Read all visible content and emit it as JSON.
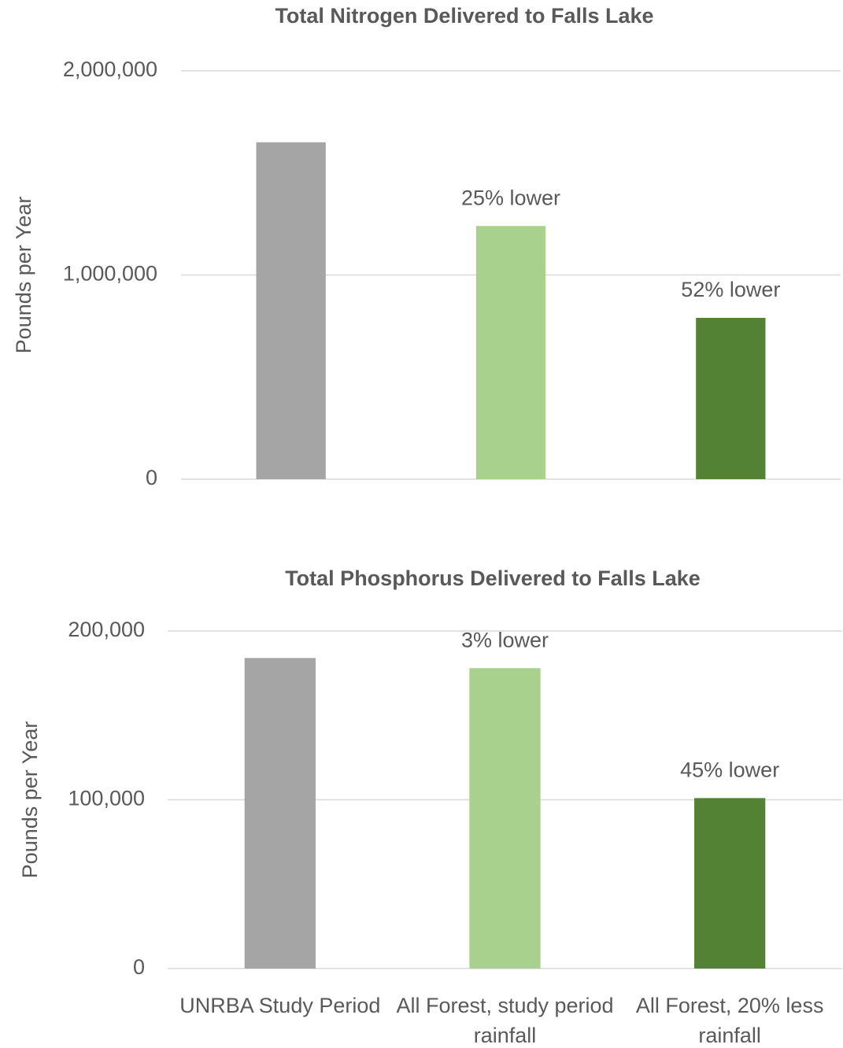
{
  "chart_data": [
    {
      "type": "bar",
      "title": "Total Nitrogen Delivered to Falls Lake",
      "y_label": "Pounds per Year",
      "categories": [
        null,
        null,
        null
      ],
      "values": [
        1650000,
        1240000,
        790000
      ],
      "colors": [
        "#a5a5a5",
        "#a9d18e",
        "#548235"
      ],
      "annotations": [
        null,
        "25% lower",
        "52% lower"
      ],
      "ylim": [
        0,
        2000000
      ],
      "yticks": [
        0,
        {
          "value": 1000000,
          "label": "1,000,000"
        },
        {
          "value": 2000000,
          "label": "2,000,000"
        }
      ],
      "grid": true
    },
    {
      "type": "bar",
      "title": "Total Phosphorus Delivered to Falls Lake",
      "y_label": "Pounds per Year",
      "categories": [
        "UNRBA Study Period",
        "All Forest, study period rainfall",
        "All Forest, 20% less rainfall"
      ],
      "values": [
        184000,
        178000,
        101000
      ],
      "colors": [
        "#a5a5a5",
        "#a9d18e",
        "#548235"
      ],
      "annotations": [
        null,
        "3% lower",
        "45% lower"
      ],
      "ylim": [
        0,
        200000
      ],
      "yticks": [
        0,
        {
          "value": 100000,
          "label": "100,000"
        },
        {
          "value": 200000,
          "label": "200,000"
        }
      ],
      "grid": true
    }
  ]
}
